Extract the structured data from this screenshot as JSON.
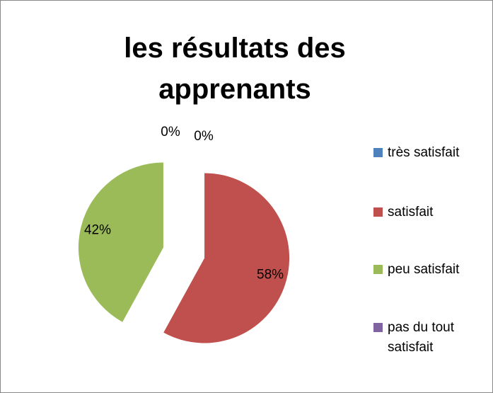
{
  "chart_data": {
    "type": "pie",
    "title": "les résultats des apprenants",
    "categories": [
      "très satisfait",
      "satisfait",
      "peu satisfait",
      "pas du tout satisfait"
    ],
    "values": [
      0,
      58,
      42,
      0
    ],
    "value_labels": [
      "0%",
      "58%",
      "42%",
      "0%"
    ],
    "colors": [
      "#4f81bd",
      "#c0504d",
      "#9bbb59",
      "#8064a2"
    ],
    "legend": "right",
    "exploded": true
  }
}
